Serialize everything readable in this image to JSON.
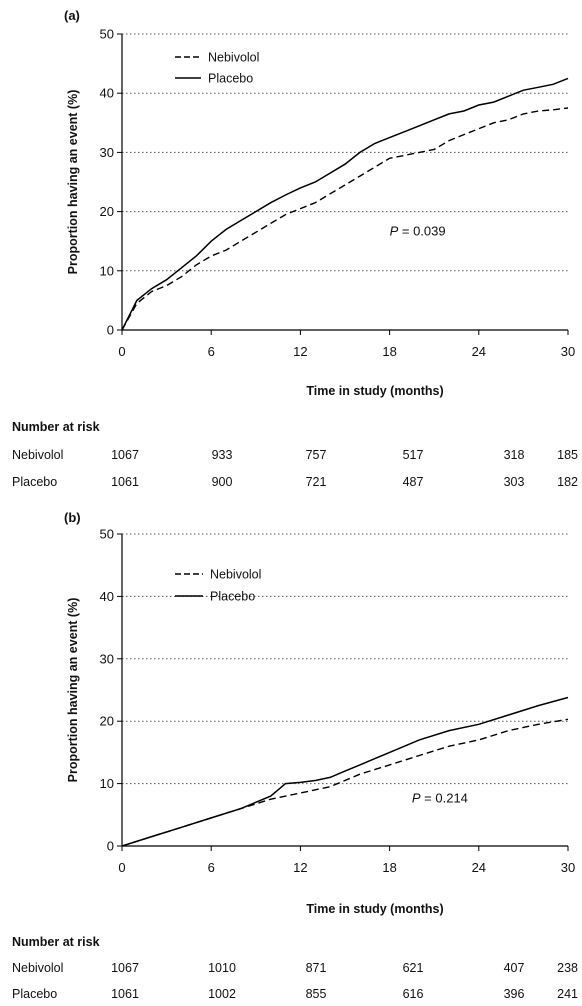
{
  "chart_data": [
    {
      "type": "line",
      "panel_label": "(a)",
      "xlabel": "Time in study (months)",
      "ylabel": "Proportion having an event (%)",
      "xlim": [
        0,
        30
      ],
      "ylim": [
        0,
        50
      ],
      "xticks": [
        0,
        6,
        12,
        18,
        24,
        30
      ],
      "yticks": [
        0,
        10,
        20,
        30,
        40,
        50
      ],
      "grid": "horizontal dotted",
      "legend_position": "top-left",
      "annotation": {
        "prefix": "P",
        "text": " = 0.039",
        "x": 18,
        "y": 16
      },
      "series": [
        {
          "name": "Nebivolol",
          "style": "dashed",
          "x": [
            0,
            1,
            2,
            3,
            4,
            5,
            6,
            7,
            8,
            9,
            10,
            11,
            12,
            13,
            14,
            15,
            16,
            17,
            18,
            19,
            20,
            21,
            22,
            23,
            24,
            25,
            26,
            27,
            28,
            29,
            30
          ],
          "y": [
            0,
            4.5,
            6.5,
            7.5,
            9,
            11,
            12.5,
            13.5,
            15,
            16.5,
            18,
            19.5,
            20.5,
            21.5,
            23,
            24.5,
            26,
            27.5,
            29,
            29.5,
            30,
            30.5,
            32,
            33,
            34,
            35,
            35.5,
            36.5,
            37,
            37.2,
            37.5
          ]
        },
        {
          "name": "Placebo",
          "style": "solid",
          "x": [
            0,
            1,
            2,
            3,
            4,
            5,
            6,
            7,
            8,
            9,
            10,
            11,
            12,
            13,
            14,
            15,
            16,
            17,
            18,
            19,
            20,
            21,
            22,
            23,
            24,
            25,
            26,
            27,
            28,
            29,
            30
          ],
          "y": [
            0,
            5,
            7,
            8.5,
            10.5,
            12.5,
            15,
            17,
            18.5,
            20,
            21.5,
            22.8,
            24,
            25,
            26.5,
            28,
            30,
            31.5,
            32.5,
            33.5,
            34.5,
            35.5,
            36.5,
            37,
            38,
            38.5,
            39.5,
            40.5,
            41,
            41.5,
            42.5
          ]
        }
      ],
      "risk_table": {
        "title": "Number at risk",
        "rows": [
          {
            "label": "Nebivolol",
            "values": [
              "1067",
              "933",
              "757",
              "517",
              "318",
              "185"
            ]
          },
          {
            "label": "Placebo",
            "values": [
              "1061",
              "900",
              "721",
              "487",
              "303",
              "182"
            ]
          }
        ]
      }
    },
    {
      "type": "line",
      "panel_label": "(b)",
      "xlabel": "Time in study (months)",
      "ylabel": "Proportion having an event (%)",
      "xlim": [
        0,
        30
      ],
      "ylim": [
        0,
        50
      ],
      "xticks": [
        0,
        6,
        12,
        18,
        24,
        30
      ],
      "yticks": [
        0,
        10,
        20,
        30,
        40,
        50
      ],
      "grid": "horizontal dotted",
      "legend_position": "top-left",
      "annotation": {
        "prefix": "P",
        "text": " = 0.214",
        "x": 19.5,
        "y": 7
      },
      "series": [
        {
          "name": "Nebivolol",
          "style": "dashed",
          "x": [
            0,
            2,
            4,
            6,
            8,
            10,
            12,
            14,
            16,
            18,
            20,
            22,
            24,
            26,
            28,
            30
          ],
          "y": [
            0,
            1.5,
            3,
            4.5,
            6,
            7.5,
            8.5,
            9.5,
            11.5,
            13,
            14.5,
            16,
            17,
            18.5,
            19.5,
            20.3
          ]
        },
        {
          "name": "Placebo",
          "style": "solid",
          "x": [
            0,
            2,
            4,
            6,
            8,
            10,
            11,
            12,
            13,
            14,
            15,
            16,
            18,
            20,
            22,
            24,
            26,
            28,
            30
          ],
          "y": [
            0,
            1.5,
            3,
            4.5,
            6,
            8,
            10,
            10.2,
            10.5,
            11,
            12,
            13,
            15,
            17,
            18.5,
            19.5,
            21,
            22.5,
            23.8
          ]
        }
      ],
      "risk_table": {
        "title": "Number at risk",
        "rows": [
          {
            "label": "Nebivolol",
            "values": [
              "1067",
              "1010",
              "871",
              "621",
              "407",
              "238"
            ]
          },
          {
            "label": "Placebo",
            "values": [
              "1061",
              "1002",
              "855",
              "616",
              "396",
              "241"
            ]
          }
        ]
      }
    }
  ]
}
